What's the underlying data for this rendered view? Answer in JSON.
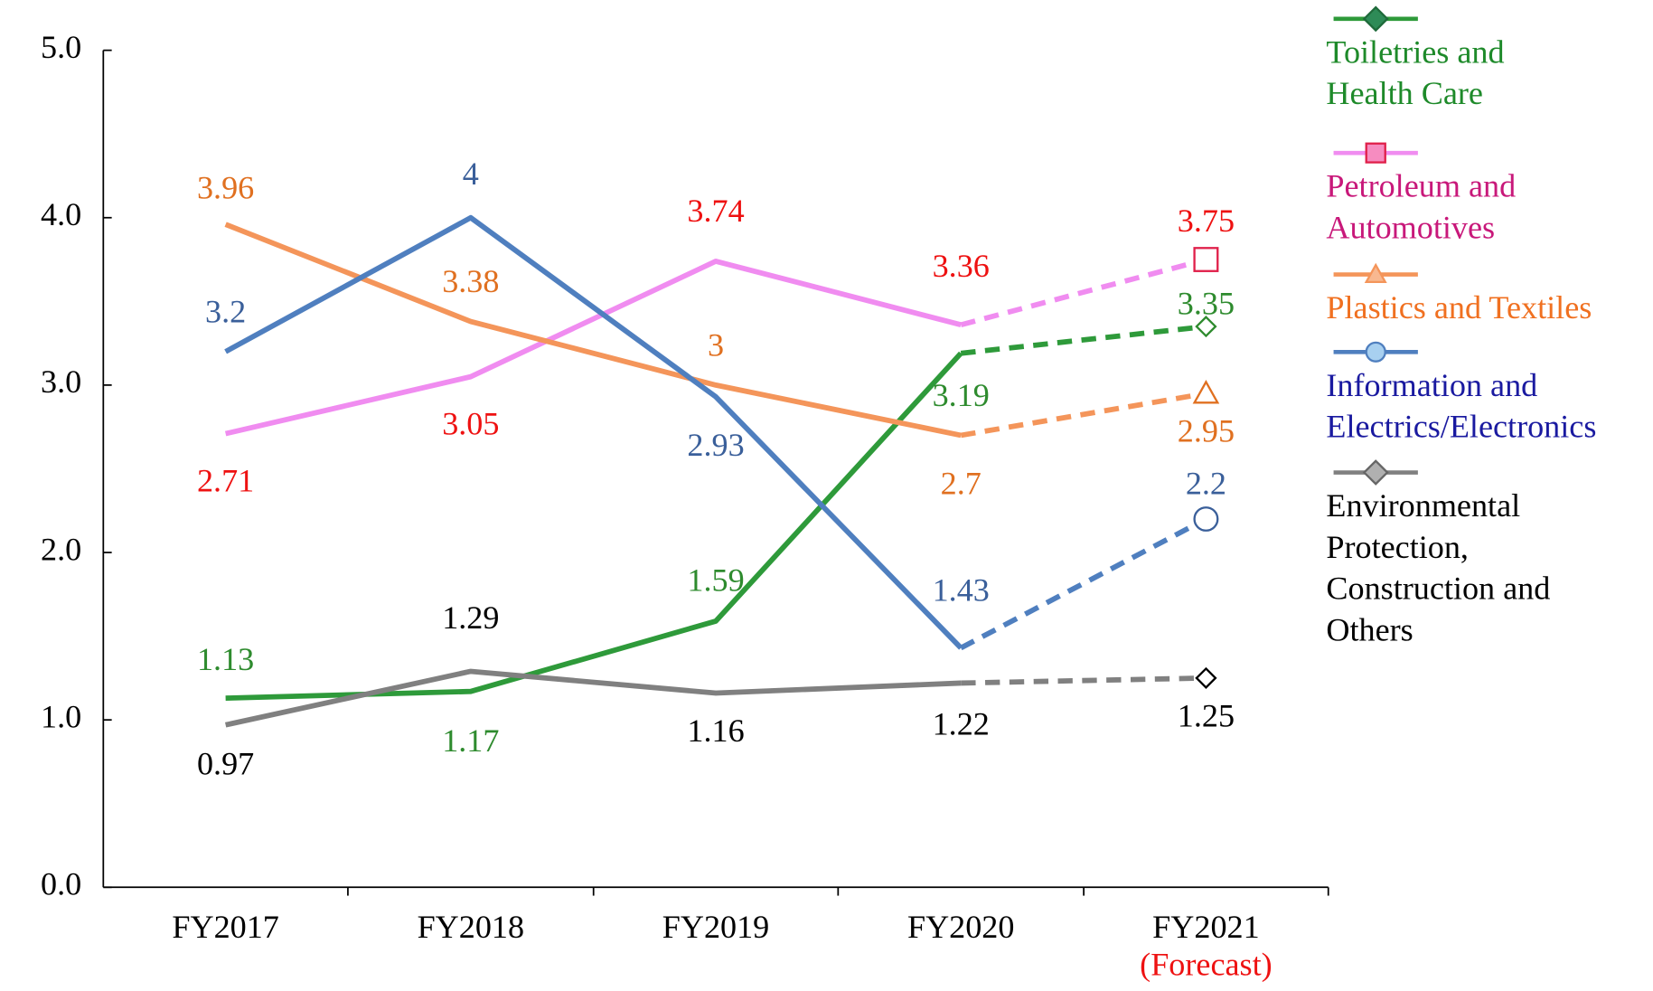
{
  "chart_data": {
    "type": "line",
    "categories": [
      "FY2017",
      "FY2018",
      "FY2019",
      "FY2020",
      "FY2021"
    ],
    "category_note": "(Forecast)",
    "series": [
      {
        "name": "Toiletries and\nHealth Care",
        "color": "#2e9a3a",
        "label_color": "#2e8b2e",
        "legend_color": "#1e8a2a",
        "marker": "diamond",
        "marker_fill": "#2e8b57",
        "values": [
          1.13,
          1.17,
          1.59,
          3.19,
          3.35
        ]
      },
      {
        "name": "Petroleum and\nAutomotives",
        "color": "#f08cf0",
        "label_color": "#ee1111",
        "legend_color": "#c8187a",
        "marker": "square",
        "marker_fill": "#f68cc0",
        "marker_edge": "#e0204a",
        "values": [
          2.71,
          3.05,
          3.74,
          3.36,
          3.75
        ]
      },
      {
        "name": "Plastics and Textiles",
        "color": "#f4955a",
        "label_color": "#e07020",
        "legend_color": "#f07020",
        "marker": "triangle",
        "marker_fill": "#f8b890",
        "values": [
          3.96,
          3.38,
          3.0,
          2.7,
          2.95
        ]
      },
      {
        "name": "Information and\nElectrics/Electronics",
        "color": "#4f7fbf",
        "label_color": "#3a5f9a",
        "legend_color": "#1a1aa0",
        "marker": "circle",
        "marker_fill": "#a8d0f0",
        "values": [
          3.2,
          4.0,
          2.93,
          1.43,
          2.2
        ]
      },
      {
        "name": "Environmental\nProtection,\nConstruction and\nOthers",
        "color": "#808080",
        "label_color": "#000000",
        "legend_color": "#000000",
        "marker": "diamond",
        "marker_fill": "#b0b0b0",
        "values": [
          0.97,
          1.29,
          1.16,
          1.22,
          1.25
        ]
      }
    ],
    "ylim": [
      0,
      5
    ],
    "yticks": [
      {
        "value": 0,
        "label": "0.0"
      },
      {
        "value": 1,
        "label": "1.0"
      },
      {
        "value": 2,
        "label": "2.0"
      },
      {
        "value": 3,
        "label": "3.0"
      },
      {
        "value": 4,
        "label": "4.0"
      },
      {
        "value": 5,
        "label": "5.0"
      }
    ]
  }
}
